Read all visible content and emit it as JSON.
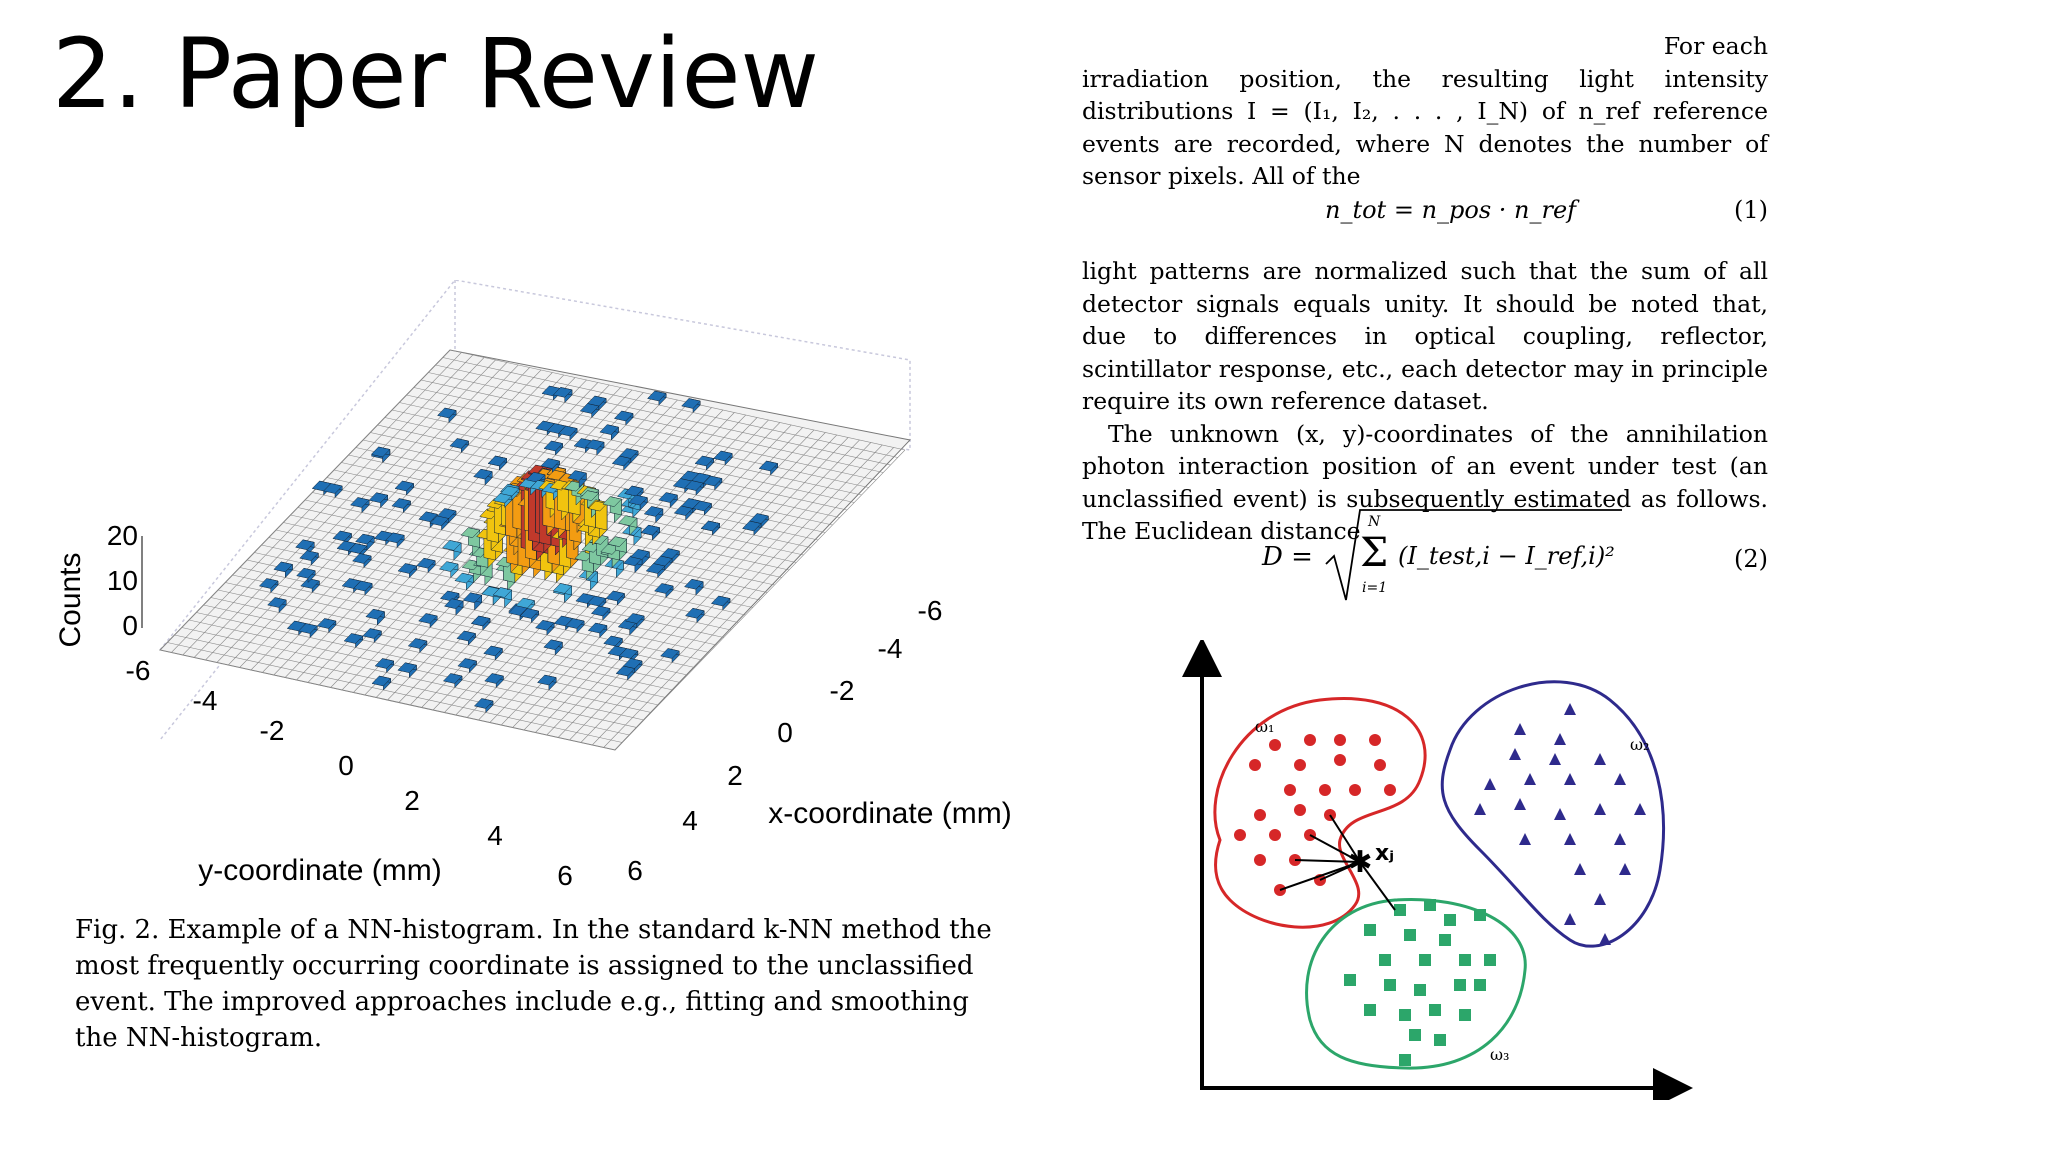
{
  "slide": {
    "title": "2. Paper Review"
  },
  "figure": {
    "z_axis_label": "Counts",
    "z_ticks": [
      "20",
      "10",
      "0"
    ],
    "y_axis_label": "y-coordinate (mm)",
    "y_ticks": [
      "-6",
      "-4",
      "-2",
      "0",
      "2",
      "4",
      "6"
    ],
    "x_axis_label": "x-coordinate (mm)",
    "x_ticks": [
      "-6",
      "-4",
      "-2",
      "0",
      "2",
      "4",
      "6"
    ],
    "caption": "Fig. 2.  Example of a NN-histogram. In the standard k-NN method the most frequently occurring coordinate is assigned to the unclassified event. The improved approaches include e.g., fitting and smoothing the NN-histogram."
  },
  "text": {
    "para1_line1": "For each",
    "para1": "irradiation position, the resulting light intensity distributions I = (I₁, I₂, . . . , I_N) of n_ref reference events are recorded, where N denotes the number of sensor pixels. All of the",
    "eq1": "n_tot = n_pos · n_ref",
    "eq1_num": "(1)",
    "para2": "light patterns are normalized such that the sum of all detector signals equals unity. It should be noted that, due to differences in optical coupling, reflector, scintillator response, etc., each detector may in principle require its own reference dataset.",
    "para3": "The unknown (x, y)-coordinates of the annihilation photon interaction position of an event under test (an unclassified event) is subsequently estimated as follows. The Euclidean distance",
    "eq2_lhs": "D =",
    "eq2_sum_top": "N",
    "eq2_sum_bottom": "i=1",
    "eq2_body": "(I_test,i − I_ref,i)²",
    "eq2_num": "(2)"
  },
  "knn_diagram": {
    "class1_label": "ω₁",
    "class2_label": "ω₂",
    "class3_label": "ω₃",
    "query_label": "xⱼ",
    "colors": {
      "class1": "#d62728",
      "class2": "#2e2a8c",
      "class3": "#2ca66a"
    }
  }
}
